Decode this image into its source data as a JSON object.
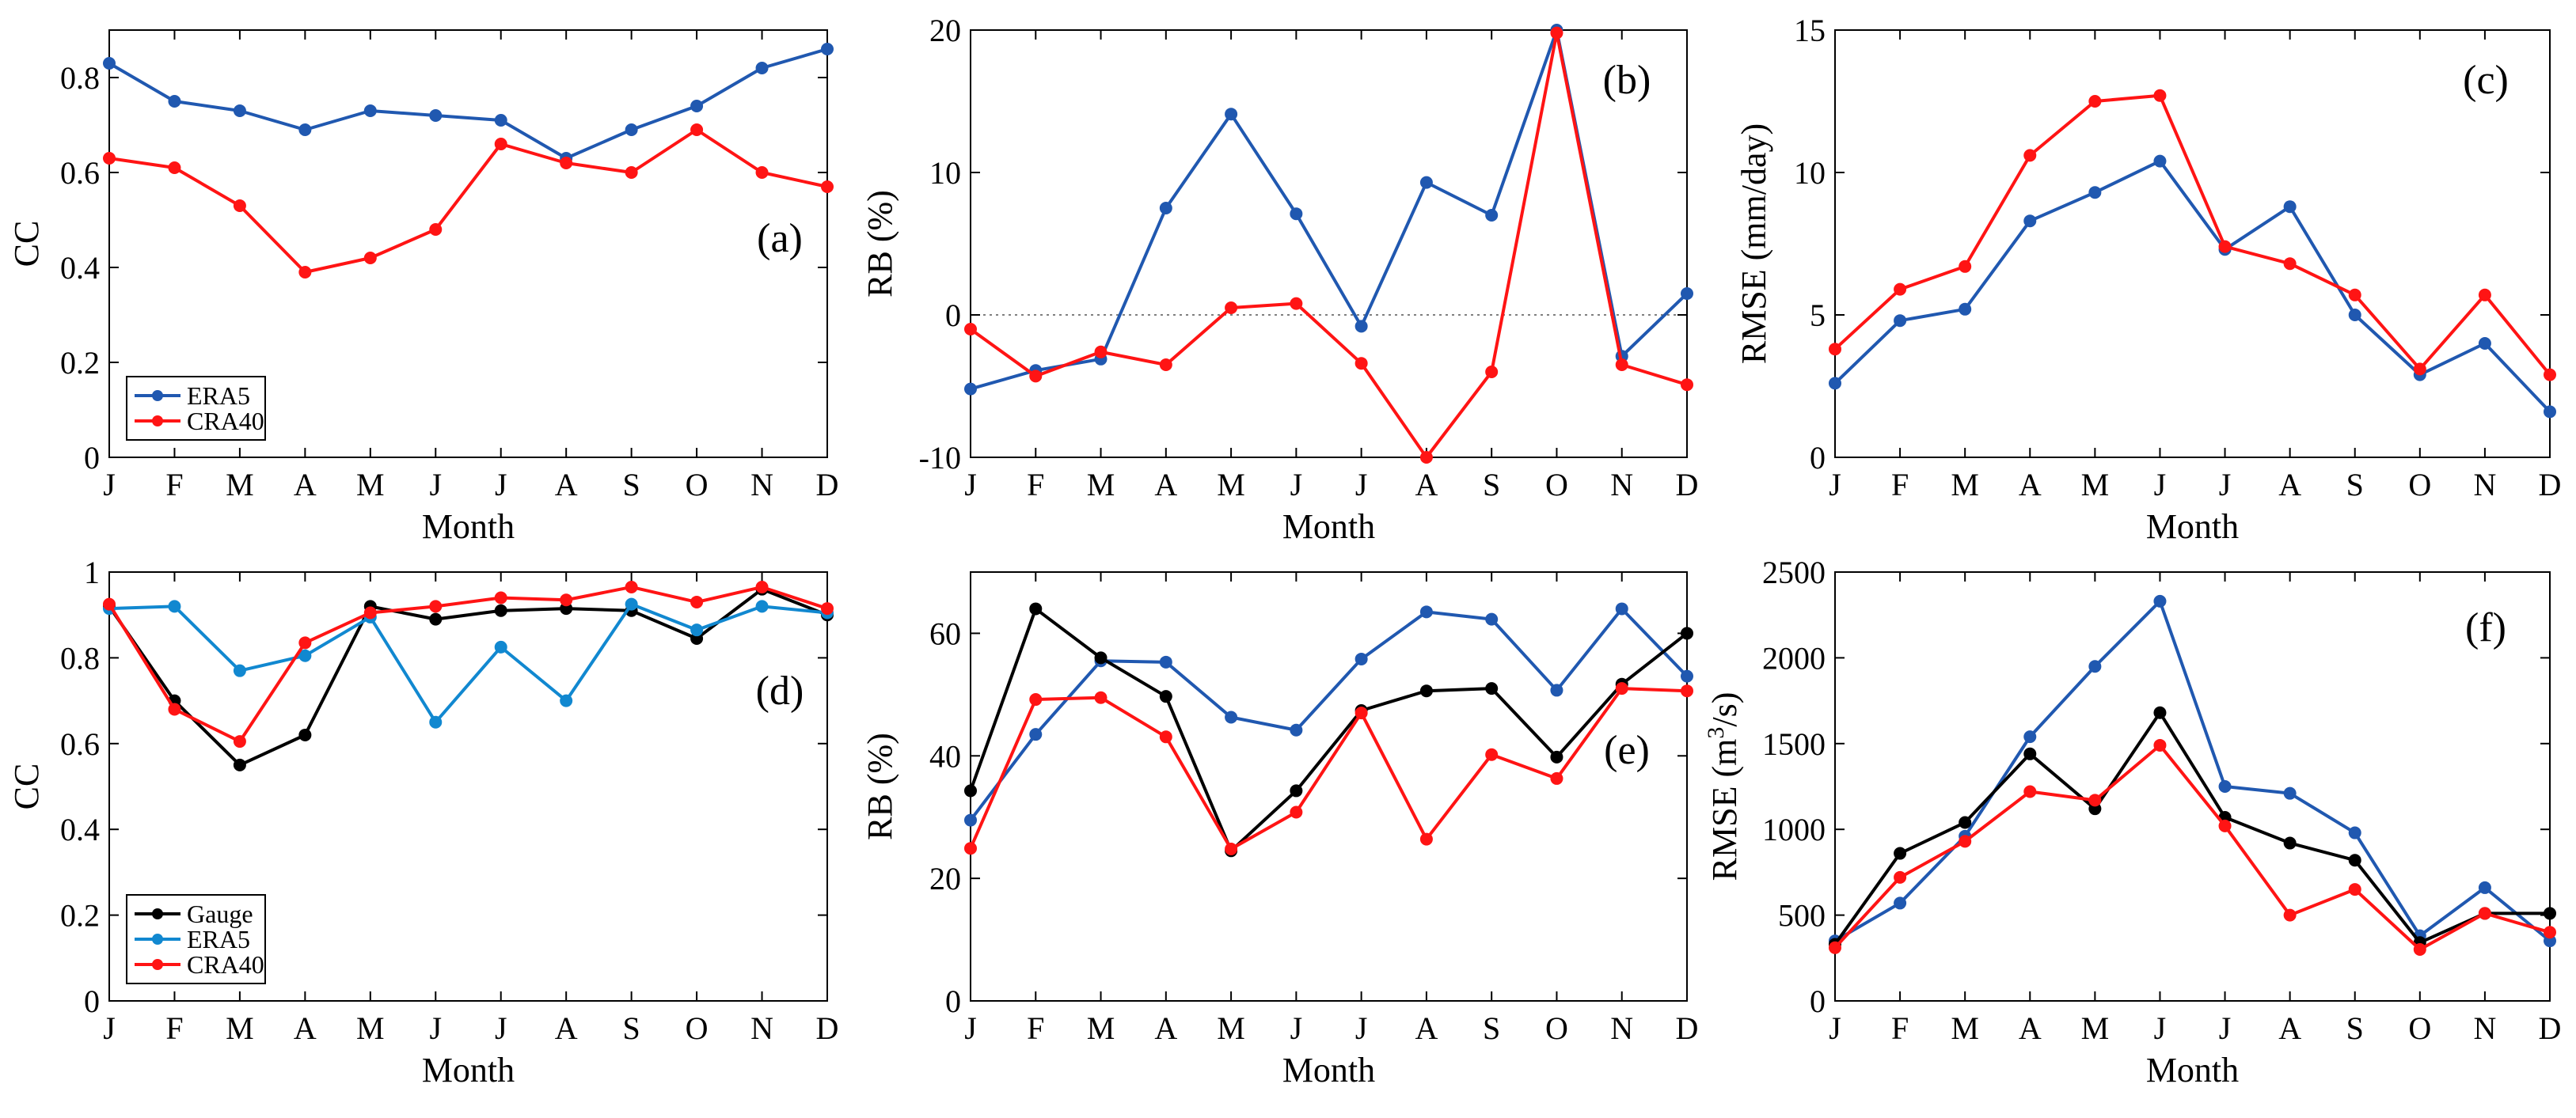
{
  "months": [
    "J",
    "F",
    "M",
    "A",
    "M",
    "J",
    "J",
    "A",
    "S",
    "O",
    "N",
    "D"
  ],
  "colors": {
    "ERA5_top": "#2058b0",
    "ERA5_bottom": "#1188d0",
    "CRA40": "#ff1414",
    "Gauge": "#000000",
    "ERA5_blue": "#2058b0"
  },
  "chart_data": [
    {
      "type": "line",
      "panel": "(a)",
      "xlabel": "Month",
      "ylabel": "CC",
      "ylim": [
        0,
        0.9
      ],
      "yticks": [
        0,
        0.2,
        0.4,
        0.6,
        0.8
      ],
      "ytick_labels": [
        "0",
        "0.2",
        "0.4",
        "0.6",
        "0.8"
      ],
      "categories": [
        "J",
        "F",
        "M",
        "A",
        "M",
        "J",
        "J",
        "A",
        "S",
        "O",
        "N",
        "D"
      ],
      "legend": {
        "position": "bottom-left",
        "entries": [
          "ERA5",
          "CRA40"
        ]
      },
      "series": [
        {
          "name": "ERA5",
          "color": "#2058b0",
          "values": [
            0.83,
            0.75,
            0.73,
            0.69,
            0.73,
            0.72,
            0.71,
            0.63,
            0.69,
            0.74,
            0.82,
            0.86
          ]
        },
        {
          "name": "CRA40",
          "color": "#ff1414",
          "values": [
            0.63,
            0.61,
            0.53,
            0.39,
            0.42,
            0.48,
            0.66,
            0.62,
            0.6,
            0.69,
            0.6,
            0.57
          ]
        }
      ]
    },
    {
      "type": "line",
      "panel": "(b)",
      "xlabel": "Month",
      "ylabel": "RB (%)",
      "ylim": [
        -10,
        20
      ],
      "yticks": [
        -10,
        0,
        10,
        20
      ],
      "ytick_labels": [
        "-10",
        "0",
        "10",
        "20"
      ],
      "zero_line": true,
      "categories": [
        "J",
        "F",
        "M",
        "A",
        "M",
        "J",
        "J",
        "A",
        "S",
        "O",
        "N",
        "D"
      ],
      "series": [
        {
          "name": "ERA5",
          "color": "#2058b0",
          "values": [
            -5.2,
            -3.9,
            -3.1,
            7.5,
            14.1,
            7.1,
            -0.8,
            9.3,
            7.0,
            20.0,
            -2.9,
            1.5
          ]
        },
        {
          "name": "CRA40",
          "color": "#ff1414",
          "values": [
            -1.0,
            -4.3,
            -2.6,
            -3.5,
            0.5,
            0.8,
            -3.4,
            -10.0,
            -4.0,
            19.8,
            -3.5,
            -4.9
          ]
        }
      ]
    },
    {
      "type": "line",
      "panel": "(c)",
      "xlabel": "Month",
      "ylabel": "RMSE (mm/day)",
      "ylim": [
        0,
        15
      ],
      "yticks": [
        0,
        5,
        10,
        15
      ],
      "ytick_labels": [
        "0",
        "5",
        "10",
        "15"
      ],
      "categories": [
        "J",
        "F",
        "M",
        "A",
        "M",
        "J",
        "J",
        "A",
        "S",
        "O",
        "N",
        "D"
      ],
      "series": [
        {
          "name": "ERA5",
          "color": "#2058b0",
          "values": [
            2.6,
            4.8,
            5.2,
            8.3,
            9.3,
            10.4,
            7.3,
            8.8,
            5.0,
            2.9,
            4.0,
            1.6
          ]
        },
        {
          "name": "CRA40",
          "color": "#ff1414",
          "values": [
            3.8,
            5.9,
            6.7,
            10.6,
            12.5,
            12.7,
            7.4,
            6.8,
            5.7,
            3.1,
            5.7,
            2.9
          ]
        }
      ]
    },
    {
      "type": "line",
      "panel": "(d)",
      "xlabel": "Month",
      "ylabel": "CC",
      "ylim": [
        0,
        1
      ],
      "yticks": [
        0,
        0.2,
        0.4,
        0.6,
        0.8,
        1
      ],
      "ytick_labels": [
        "0",
        "0.2",
        "0.4",
        "0.6",
        "0.8",
        "1"
      ],
      "categories": [
        "J",
        "F",
        "M",
        "A",
        "M",
        "J",
        "J",
        "A",
        "S",
        "O",
        "N",
        "D"
      ],
      "legend": {
        "position": "bottom-left",
        "entries": [
          "Gauge",
          "ERA5",
          "CRA40"
        ]
      },
      "series": [
        {
          "name": "Gauge",
          "color": "#000000",
          "values": [
            0.92,
            0.7,
            0.55,
            0.62,
            0.92,
            0.89,
            0.91,
            0.915,
            0.91,
            0.845,
            0.96,
            0.9
          ]
        },
        {
          "name": "ERA5",
          "color": "#1188d0",
          "values": [
            0.915,
            0.92,
            0.77,
            0.805,
            0.895,
            0.65,
            0.825,
            0.7,
            0.925,
            0.865,
            0.92,
            0.905
          ]
        },
        {
          "name": "CRA40",
          "color": "#ff1414",
          "values": [
            0.925,
            0.68,
            0.605,
            0.835,
            0.905,
            0.92,
            0.94,
            0.935,
            0.965,
            0.93,
            0.965,
            0.915
          ]
        }
      ]
    },
    {
      "type": "line",
      "panel": "(e)",
      "xlabel": "Month",
      "ylabel": "RB (%)",
      "ylim": [
        0,
        70
      ],
      "yticks": [
        0,
        20,
        40,
        60
      ],
      "ytick_labels": [
        "0",
        "20",
        "40",
        "60"
      ],
      "categories": [
        "J",
        "F",
        "M",
        "A",
        "M",
        "J",
        "J",
        "A",
        "S",
        "O",
        "N",
        "D"
      ],
      "series": [
        {
          "name": "ERA5",
          "color": "#2058b0",
          "values": [
            29.5,
            43.5,
            55.5,
            55.3,
            46.3,
            44.2,
            55.8,
            63.5,
            62.3,
            50.7,
            64.0,
            53.0
          ]
        },
        {
          "name": "Gauge",
          "color": "#000000",
          "values": [
            34.3,
            64.0,
            56.0,
            49.7,
            24.5,
            34.3,
            47.4,
            50.6,
            51.0,
            39.8,
            51.7,
            60.0
          ]
        },
        {
          "name": "CRA40",
          "color": "#ff1414",
          "values": [
            24.9,
            49.2,
            49.5,
            43.1,
            24.8,
            30.8,
            47.0,
            26.4,
            40.2,
            36.3,
            51.0,
            50.6
          ]
        }
      ]
    },
    {
      "type": "line",
      "panel": "(f)",
      "xlabel": "Month",
      "ylabel": "RMSE (m³/s)",
      "ylabel_parts": {
        "prefix": "RMSE (m",
        "sup": "3",
        "suffix": "/s)"
      },
      "ylim": [
        0,
        2500
      ],
      "yticks": [
        0,
        500,
        1000,
        1500,
        2000,
        2500
      ],
      "ytick_labels": [
        "0",
        "500",
        "1000",
        "1500",
        "2000",
        "2500"
      ],
      "categories": [
        "J",
        "F",
        "M",
        "A",
        "M",
        "J",
        "J",
        "A",
        "S",
        "O",
        "N",
        "D"
      ],
      "series": [
        {
          "name": "ERA5",
          "color": "#2058b0",
          "values": [
            350,
            570,
            960,
            1540,
            1950,
            2330,
            1250,
            1210,
            980,
            380,
            660,
            350
          ]
        },
        {
          "name": "Gauge",
          "color": "#000000",
          "values": [
            330,
            860,
            1040,
            1440,
            1120,
            1680,
            1070,
            920,
            820,
            340,
            510,
            510
          ]
        },
        {
          "name": "CRA40",
          "color": "#ff1414",
          "values": [
            310,
            720,
            930,
            1220,
            1170,
            1490,
            1020,
            500,
            650,
            300,
            510,
            400
          ]
        }
      ]
    }
  ]
}
